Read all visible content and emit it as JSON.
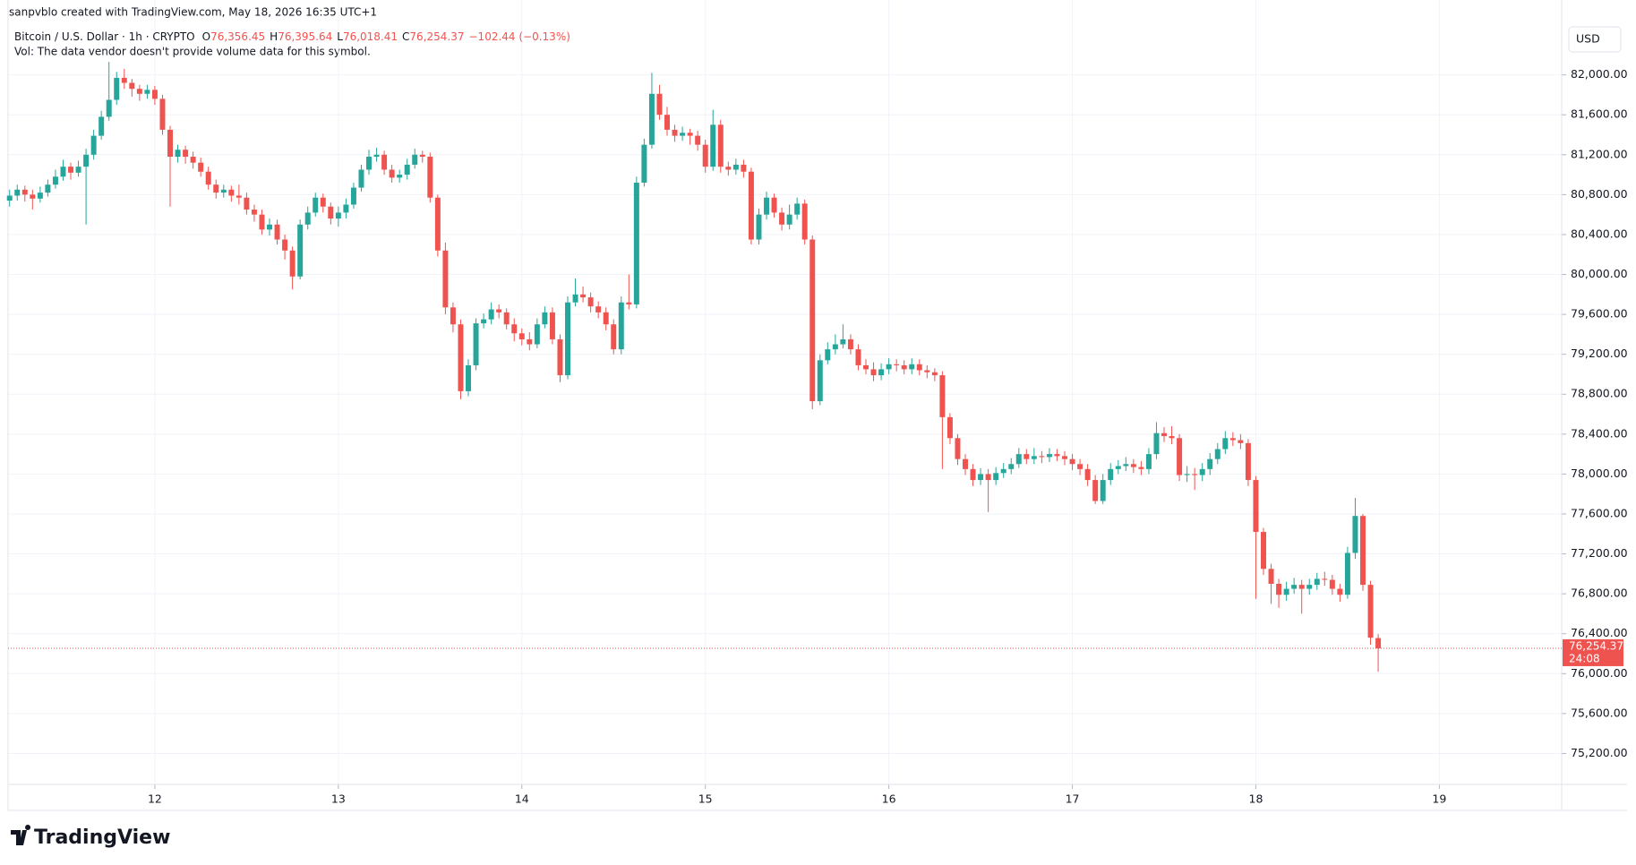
{
  "header": {
    "credit": "sanpvblo created with TradingView.com, May 18, 2026 16:35 UTC+1",
    "volume_note": "Vol: The data vendor doesn't provide volume data for this symbol."
  },
  "chart_data": {
    "type": "candlestick",
    "title": "Bitcoin / U.S. Dollar · 1h · CRYPTO",
    "legend": [
      {
        "key": "O",
        "value": "76,356.45"
      },
      {
        "key": "H",
        "value": "76,395.64"
      },
      {
        "key": "L",
        "value": "76,018.41"
      },
      {
        "key": "C",
        "value": "76,254.37"
      }
    ],
    "change": "−102.44 (−0.13%)",
    "currency": "USD",
    "last_price_label": "76,254.37",
    "countdown": "24:08",
    "up_color": "#26a69a",
    "down_color": "#ef5350",
    "open": [
      80740,
      80790,
      80850,
      80800,
      80760,
      80820,
      80900,
      80980,
      81080,
      81020,
      81080,
      81200,
      81390,
      81580,
      81750,
      81970,
      81920,
      81860,
      81810,
      81850,
      81760,
      81450,
      81180,
      81250,
      81180,
      81120,
      81030,
      80900,
      80820,
      80850,
      80790,
      80770,
      80650,
      80600,
      80450,
      80500,
      80350,
      80240,
      79980,
      80500,
      80620,
      80770,
      80680,
      80560,
      80620,
      80700,
      80870,
      81050,
      81180,
      81200,
      81050,
      80970,
      81000,
      81100,
      81200,
      81180,
      80770,
      80240,
      79670,
      79500,
      78830,
      79090,
      79510,
      79550,
      79650,
      79620,
      79500,
      79410,
      79350,
      79300,
      79500,
      79620,
      79350,
      78990,
      79720,
      79800,
      79770,
      79680,
      79620,
      79500,
      79250,
      79720,
      79700,
      80920,
      81300,
      81810,
      81600,
      81450,
      81390,
      81420,
      81390,
      81300,
      81080,
      81500,
      81080,
      81050,
      81100,
      81030,
      80350,
      80600,
      80770,
      80620,
      80500,
      80600,
      80710,
      80350,
      78730,
      79140,
      79250,
      79300,
      79350,
      79250,
      79090,
      79050,
      78990,
      79050,
      79100,
      79090,
      79050,
      79100,
      79040,
      79020,
      78990,
      78570,
      78360,
      78150,
      78050,
      77940,
      78000,
      77940,
      78010,
      78050,
      78100,
      78200,
      78150,
      78180,
      78170,
      78200,
      78180,
      78150,
      78100,
      78050,
      77940,
      77730,
      77940,
      78050,
      78080,
      78100,
      78070,
      78050,
      78200,
      78410,
      78380,
      78360,
      77990,
      78000,
      77990,
      78050,
      78150,
      78250,
      78360,
      78340,
      78310,
      77940,
      77420,
      77050,
      76900,
      76790,
      76850,
      76890,
      76850,
      76890,
      76950,
      76940,
      76850,
      76790,
      77210,
      77580,
      76890,
      76356.45
    ],
    "high": [
      80850,
      80900,
      80890,
      80850,
      80880,
      80950,
      81050,
      81150,
      81120,
      81140,
      81260,
      81450,
      81640,
      82130,
      82030,
      82060,
      81960,
      81900,
      81900,
      81890,
      81800,
      81490,
      81300,
      81290,
      81230,
      81170,
      81080,
      80950,
      80900,
      80890,
      80900,
      80820,
      80700,
      80650,
      80560,
      80550,
      80400,
      80280,
      80550,
      80680,
      80820,
      80810,
      80720,
      80680,
      80760,
      80920,
      81100,
      81250,
      81270,
      81240,
      81100,
      81050,
      81160,
      81260,
      81240,
      81220,
      80800,
      80320,
      79720,
      79550,
      79150,
      79560,
      79610,
      79720,
      79700,
      79660,
      79560,
      79460,
      79420,
      79560,
      79680,
      79670,
      79400,
      79780,
      79960,
      79880,
      79820,
      79730,
      79670,
      79550,
      79780,
      80000,
      80980,
      81360,
      82020,
      81900,
      81680,
      81500,
      81480,
      81460,
      81440,
      81350,
      81650,
      81550,
      81130,
      81160,
      81150,
      81070,
      80660,
      80830,
      80810,
      80670,
      80700,
      80770,
      80750,
      80390,
      79200,
      79320,
      79400,
      79500,
      79400,
      79300,
      79150,
      79120,
      79110,
      79160,
      79150,
      79140,
      79160,
      79150,
      79090,
      79060,
      79030,
      78610,
      78400,
      78200,
      78100,
      78060,
      78050,
      78070,
      78110,
      78160,
      78260,
      78250,
      78260,
      78230,
      78260,
      78250,
      78230,
      78200,
      78150,
      78100,
      77990,
      78000,
      78110,
      78140,
      78170,
      78150,
      78130,
      78260,
      78520,
      78470,
      78480,
      78400,
      78080,
      78060,
      78110,
      78210,
      78310,
      78430,
      78420,
      78400,
      78350,
      77980,
      77460,
      77100,
      76950,
      76920,
      76960,
      76940,
      76950,
      77010,
      77020,
      76990,
      76900,
      77270,
      77760,
      77600,
      76930,
      76395.64
    ],
    "low": [
      80680,
      80740,
      80730,
      80650,
      80720,
      80780,
      80860,
      80940,
      80950,
      80980,
      80500,
      81150,
      81350,
      81540,
      81700,
      81860,
      81780,
      81740,
      81760,
      81700,
      81400,
      80680,
      81120,
      81110,
      81060,
      80980,
      80850,
      80760,
      80770,
      80730,
      80700,
      80600,
      80530,
      80400,
      80390,
      80300,
      80150,
      79850,
      79950,
      80450,
      80580,
      80620,
      80500,
      80480,
      80560,
      80660,
      80830,
      81000,
      81130,
      81000,
      80920,
      80920,
      80950,
      81060,
      81120,
      80720,
      80180,
      79600,
      79420,
      78750,
      78780,
      79040,
      79460,
      79500,
      79560,
      79450,
      79330,
      79290,
      79240,
      79260,
      79460,
      79300,
      78920,
      78950,
      79680,
      79720,
      79620,
      79560,
      79440,
      79200,
      79200,
      79650,
      79660,
      80880,
      81260,
      81550,
      81390,
      81330,
      81340,
      81300,
      81240,
      81020,
      81040,
      81020,
      80990,
      81000,
      80970,
      80300,
      80300,
      80550,
      80570,
      80440,
      80450,
      80550,
      80300,
      78650,
      78690,
      79100,
      79200,
      79260,
      79200,
      79040,
      79000,
      78930,
      78940,
      79000,
      79030,
      79000,
      79000,
      78990,
      78960,
      78930,
      78050,
      78300,
      78090,
      77990,
      77880,
      77890,
      77620,
      77890,
      77960,
      78000,
      78060,
      78100,
      78100,
      78110,
      78120,
      78130,
      78090,
      78040,
      77990,
      77880,
      77700,
      77700,
      77890,
      78000,
      78030,
      78010,
      77990,
      78000,
      78150,
      78320,
      78300,
      77930,
      77920,
      77840,
      77930,
      77990,
      78100,
      78200,
      78280,
      78250,
      77880,
      76750,
      76990,
      76700,
      76660,
      76730,
      76800,
      76600,
      76790,
      76840,
      76880,
      76790,
      76720,
      76750,
      77150,
      76830,
      76290,
      76018.41
    ],
    "close": [
      80790,
      80850,
      80800,
      80760,
      80820,
      80900,
      80980,
      81080,
      81020,
      81080,
      81200,
      81390,
      81580,
      81750,
      81970,
      81920,
      81860,
      81810,
      81850,
      81760,
      81450,
      81180,
      81250,
      81180,
      81120,
      81030,
      80900,
      80820,
      80850,
      80790,
      80770,
      80650,
      80600,
      80450,
      80500,
      80350,
      80240,
      79980,
      80500,
      80620,
      80770,
      80680,
      80560,
      80620,
      80700,
      80870,
      81050,
      81180,
      81200,
      81050,
      80970,
      81000,
      81100,
      81200,
      81180,
      80770,
      80240,
      79670,
      79500,
      78830,
      79090,
      79510,
      79550,
      79650,
      79620,
      79500,
      79410,
      79350,
      79300,
      79500,
      79620,
      79350,
      78990,
      79720,
      79800,
      79770,
      79680,
      79620,
      79500,
      79250,
      79720,
      79700,
      80920,
      81300,
      81810,
      81600,
      81450,
      81390,
      81420,
      81390,
      81300,
      81080,
      81500,
      81080,
      81050,
      81100,
      81030,
      80350,
      80600,
      80770,
      80620,
      80500,
      80600,
      80710,
      80350,
      78730,
      79140,
      79250,
      79300,
      79350,
      79250,
      79090,
      79050,
      78990,
      79050,
      79100,
      79090,
      79050,
      79100,
      79040,
      79020,
      78990,
      78570,
      78360,
      78150,
      78050,
      77940,
      78000,
      77940,
      78010,
      78050,
      78100,
      78200,
      78150,
      78180,
      78170,
      78200,
      78180,
      78150,
      78100,
      78050,
      77940,
      77730,
      77940,
      78050,
      78080,
      78100,
      78070,
      78050,
      78200,
      78410,
      78380,
      78360,
      77990,
      78000,
      77990,
      78050,
      78150,
      78250,
      78360,
      78340,
      78310,
      77940,
      77420,
      77050,
      76900,
      76790,
      76850,
      76890,
      76850,
      76890,
      76950,
      76940,
      76850,
      76790,
      77210,
      77580,
      76890,
      76360,
      76254.37
    ],
    "ylim": [
      74890,
      82490
    ],
    "yticks": [
      {
        "value": 75200,
        "label": "75,200.00"
      },
      {
        "value": 75600,
        "label": "75,600.00"
      },
      {
        "value": 76000,
        "label": "76,000.00"
      },
      {
        "value": 76400,
        "label": "76,400.00"
      },
      {
        "value": 76800,
        "label": "76,800.00"
      },
      {
        "value": 77200,
        "label": "77,200.00"
      },
      {
        "value": 77600,
        "label": "77,600.00"
      },
      {
        "value": 78000,
        "label": "78,000.00"
      },
      {
        "value": 78400,
        "label": "78,400.00"
      },
      {
        "value": 78800,
        "label": "78,800.00"
      },
      {
        "value": 79200,
        "label": "79,200.00"
      },
      {
        "value": 79600,
        "label": "79,600.00"
      },
      {
        "value": 80000,
        "label": "80,000.00"
      },
      {
        "value": 80400,
        "label": "80,400.00"
      },
      {
        "value": 80800,
        "label": "80,800.00"
      },
      {
        "value": 81200,
        "label": "81,200.00"
      },
      {
        "value": 81600,
        "label": "81,600.00"
      },
      {
        "value": 82000,
        "label": "82,000.00"
      }
    ],
    "xlim": [
      -0.2,
      203
    ],
    "xticks": [
      {
        "value": 19,
        "label": "12"
      },
      {
        "value": 43,
        "label": "13"
      },
      {
        "value": 67,
        "label": "14"
      },
      {
        "value": 91,
        "label": "15"
      },
      {
        "value": 115,
        "label": "16"
      },
      {
        "value": 139,
        "label": "17"
      },
      {
        "value": 163,
        "label": "18"
      },
      {
        "value": 187,
        "label": "19"
      }
    ],
    "grid": true
  },
  "footer": {
    "logo": "TradingView"
  }
}
